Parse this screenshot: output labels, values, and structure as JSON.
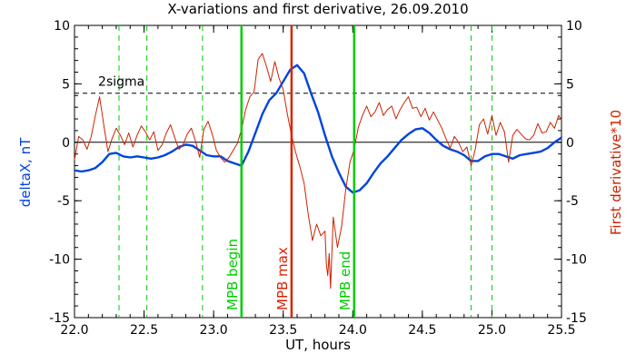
{
  "chart_data": {
    "type": "line",
    "title": "X-variations and first derivative, 26.09.2010",
    "xlabel": "UT, hours",
    "ylabel_left": "deltaX, nT",
    "ylabel_right": "First derivative*10",
    "xlim": [
      22.0,
      25.5
    ],
    "ylim": [
      -15,
      10
    ],
    "x_ticks": [
      "22.0",
      "22.5",
      "23.0",
      "23.5",
      "24.0",
      "24.5",
      "25.0",
      "25.5"
    ],
    "y_ticks_left": [
      "10",
      "5",
      "0",
      "-5",
      "-10",
      "-15"
    ],
    "y_ticks_right": [
      "10",
      "5",
      "0",
      "-5",
      "-10",
      "-15"
    ],
    "threshold": {
      "label": "2sigma",
      "y": 4.2
    },
    "zero_line_y": 0,
    "dashed_verticals_x": [
      22.32,
      22.52,
      22.92,
      24.85,
      25.0
    ],
    "markers": [
      {
        "label": "MPB begin",
        "x": 23.2,
        "color": "#00cc00"
      },
      {
        "label": "MPB max",
        "x": 23.56,
        "color": "#dd2200"
      },
      {
        "label": "MPB end",
        "x": 24.01,
        "color": "#00cc00"
      }
    ],
    "series": [
      {
        "color": "#0044dd",
        "x": [
          22.0,
          22.05,
          22.1,
          22.15,
          22.2,
          22.25,
          22.3,
          22.35,
          22.4,
          22.45,
          22.5,
          22.55,
          22.6,
          22.65,
          22.7,
          22.75,
          22.8,
          22.85,
          22.9,
          22.95,
          23.0,
          23.05,
          23.1,
          23.15,
          23.2,
          23.25,
          23.3,
          23.35,
          23.4,
          23.45,
          23.5,
          23.55,
          23.6,
          23.65,
          23.7,
          23.75,
          23.8,
          23.85,
          23.9,
          23.95,
          24.0,
          24.05,
          24.1,
          24.15,
          24.2,
          24.25,
          24.3,
          24.35,
          24.4,
          24.45,
          24.5,
          24.55,
          24.6,
          24.65,
          24.7,
          24.75,
          24.8,
          24.85,
          24.9,
          24.95,
          25.0,
          25.05,
          25.1,
          25.15,
          25.2,
          25.25,
          25.3,
          25.35,
          25.4,
          25.45,
          25.5
        ],
        "values": [
          -2.4,
          -2.5,
          -2.4,
          -2.2,
          -1.7,
          -1.0,
          -0.9,
          -1.2,
          -1.3,
          -1.2,
          -1.3,
          -1.4,
          -1.3,
          -1.1,
          -0.8,
          -0.4,
          -0.2,
          -0.3,
          -0.7,
          -1.1,
          -1.2,
          -1.2,
          -1.6,
          -1.8,
          -2.0,
          -0.8,
          0.8,
          2.4,
          3.6,
          4.2,
          5.2,
          6.2,
          6.6,
          5.9,
          4.2,
          2.6,
          0.6,
          -1.2,
          -2.6,
          -3.8,
          -4.3,
          -4.1,
          -3.5,
          -2.6,
          -1.8,
          -1.2,
          -0.5,
          0.2,
          0.7,
          1.1,
          1.2,
          0.8,
          0.2,
          -0.3,
          -0.6,
          -0.8,
          -1.1,
          -1.6,
          -1.6,
          -1.2,
          -1.0,
          -1.0,
          -1.2,
          -1.4,
          -1.1,
          -1.0,
          -0.9,
          -0.8,
          -0.5,
          0.0,
          0.4
        ]
      },
      {
        "color": "#cc2200",
        "x": [
          22.0,
          22.03,
          22.06,
          22.09,
          22.12,
          22.15,
          22.18,
          22.21,
          22.24,
          22.27,
          22.3,
          22.33,
          22.36,
          22.39,
          22.42,
          22.45,
          22.48,
          22.51,
          22.54,
          22.57,
          22.6,
          22.63,
          22.66,
          22.69,
          22.72,
          22.75,
          22.78,
          22.81,
          22.84,
          22.87,
          22.9,
          22.93,
          22.96,
          22.99,
          23.02,
          23.05,
          23.08,
          23.11,
          23.14,
          23.17,
          23.2,
          23.23,
          23.26,
          23.29,
          23.32,
          23.35,
          23.38,
          23.41,
          23.44,
          23.47,
          23.5,
          23.53,
          23.56,
          23.59,
          23.62,
          23.65,
          23.68,
          23.71,
          23.74,
          23.77,
          23.8,
          23.81,
          23.82,
          23.83,
          23.84,
          23.86,
          23.89,
          23.92,
          23.95,
          23.98,
          24.01,
          24.04,
          24.07,
          24.1,
          24.13,
          24.16,
          24.19,
          24.22,
          24.25,
          24.28,
          24.31,
          24.34,
          24.37,
          24.4,
          24.43,
          24.46,
          24.49,
          24.52,
          24.55,
          24.58,
          24.61,
          24.64,
          24.67,
          24.7,
          24.73,
          24.76,
          24.79,
          24.82,
          24.85,
          24.88,
          24.91,
          24.94,
          24.97,
          25.0,
          25.03,
          25.06,
          25.09,
          25.12,
          25.15,
          25.18,
          25.21,
          25.24,
          25.27,
          25.3,
          25.33,
          25.36,
          25.39,
          25.42,
          25.45,
          25.48,
          25.5
        ],
        "values": [
          -1.5,
          0.5,
          0.2,
          -0.6,
          0.5,
          2.3,
          3.9,
          1.5,
          -0.8,
          0.3,
          1.2,
          0.6,
          -0.2,
          0.8,
          -0.4,
          0.6,
          1.4,
          0.9,
          0.2,
          0.9,
          -0.7,
          -0.2,
          0.8,
          1.5,
          0.4,
          -0.6,
          -0.2,
          0.7,
          1.2,
          0.1,
          -1.3,
          1.1,
          1.8,
          0.7,
          -0.7,
          -1.3,
          -1.7,
          -1.3,
          -0.7,
          -0.1,
          1.1,
          2.8,
          3.9,
          4.3,
          7.1,
          7.6,
          6.5,
          5.2,
          6.9,
          5.5,
          4.5,
          2.4,
          0.6,
          -0.9,
          -2.1,
          -3.5,
          -6.2,
          -8.4,
          -7.0,
          -8.0,
          -7.6,
          -10.4,
          -11.4,
          -9.5,
          -12.5,
          -6.4,
          -9.0,
          -7.2,
          -4.0,
          -1.7,
          -0.6,
          1.3,
          2.3,
          3.1,
          2.2,
          2.6,
          3.4,
          2.3,
          2.8,
          3.1,
          2.0,
          2.8,
          3.4,
          3.9,
          2.9,
          3.0,
          2.2,
          2.9,
          1.9,
          2.6,
          1.9,
          1.2,
          0.3,
          -0.5,
          0.5,
          0.0,
          -0.8,
          -0.4,
          -2.0,
          -0.6,
          1.5,
          2.0,
          0.7,
          2.3,
          0.6,
          1.7,
          0.9,
          -1.7,
          0.6,
          1.1,
          0.7,
          0.3,
          0.2,
          0.6,
          1.6,
          0.8,
          0.9,
          1.7,
          1.2,
          2.3,
          1.9
        ]
      }
    ]
  }
}
